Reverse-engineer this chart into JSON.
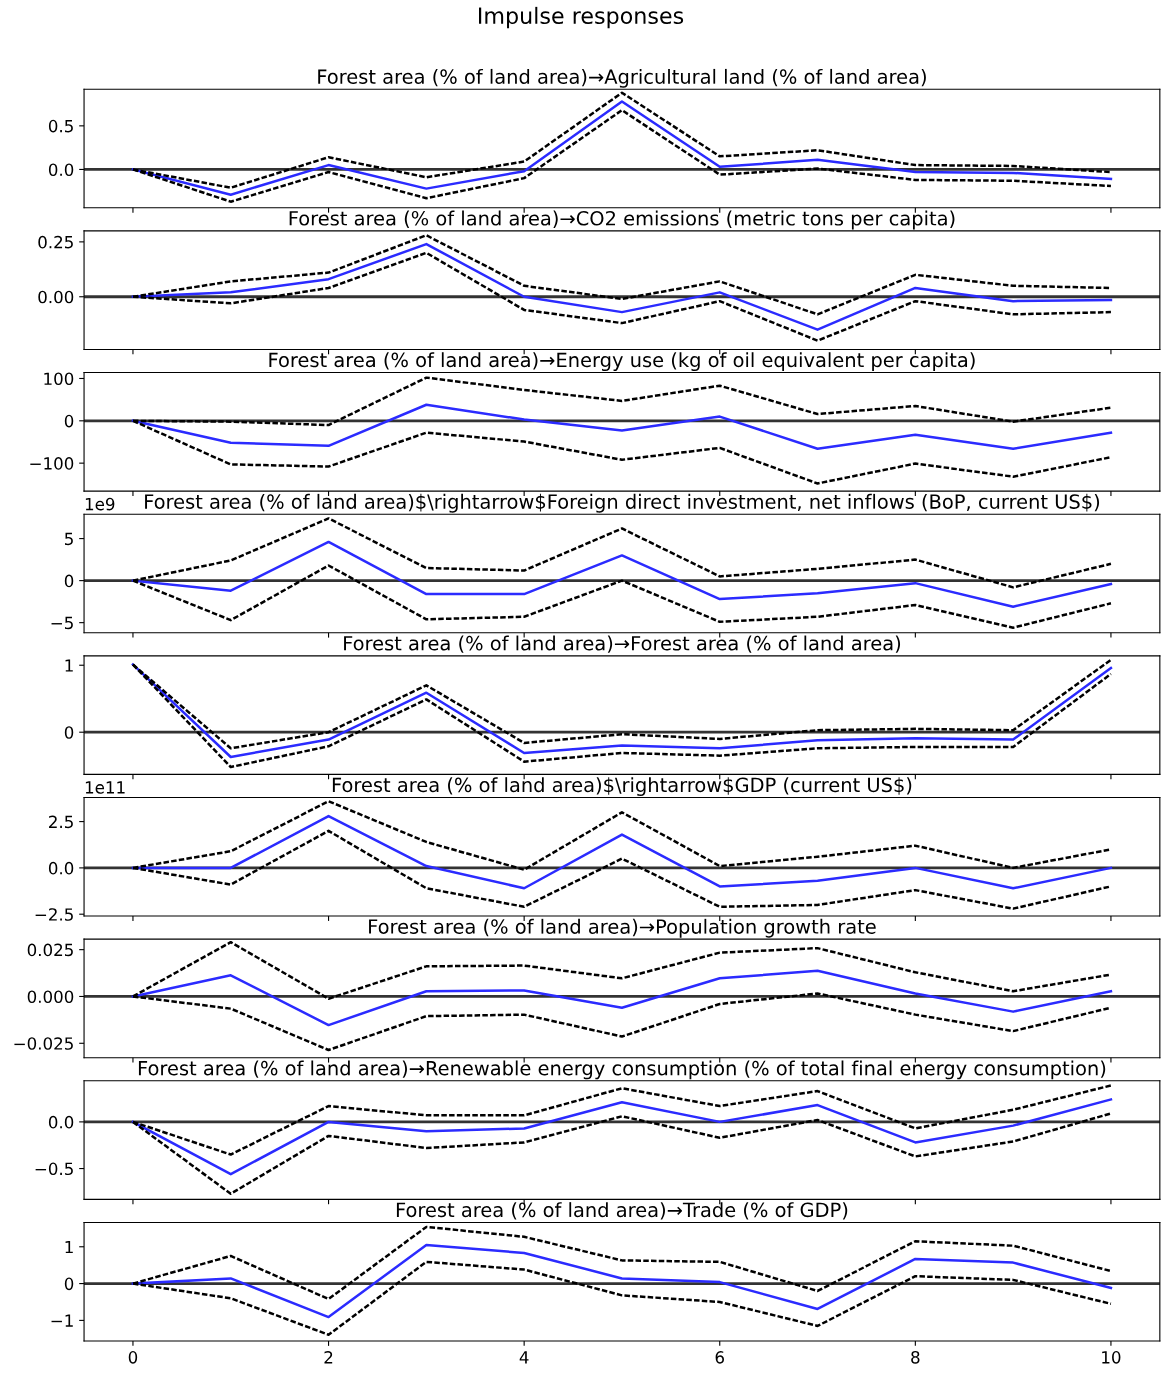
{
  "chart_data": [
    {
      "type": "line",
      "title": "Impulse responses",
      "subtitle": "Forest area (% of land area)→Agricultural land (% of land area)",
      "x": [
        0,
        1,
        2,
        3,
        4,
        5,
        6,
        7,
        8,
        9,
        10
      ],
      "xlim": [
        -0.5,
        10.5
      ],
      "xticks": [
        0,
        2,
        4,
        6,
        8,
        10
      ],
      "tick_labels": "y",
      "ylim": [
        -0.44,
        0.92
      ],
      "yticks": [
        {
          "value": 0,
          "label": "0.0"
        },
        {
          "value": 0.5,
          "label": "0.5"
        }
      ],
      "ref_lines": [
        {
          "axis": "y",
          "value": 0,
          "color": "#333333"
        }
      ],
      "series": [
        {
          "color": "#2b2bff",
          "line_style": "solid",
          "values": [
            0,
            -0.29,
            0.05,
            -0.22,
            -0.02,
            0.78,
            0.03,
            0.11,
            -0.03,
            -0.04,
            -0.11
          ]
        },
        {
          "color": "#000000",
          "line_style": "dashed",
          "values": [
            0,
            -0.21,
            0.14,
            -0.09,
            0.09,
            0.88,
            0.15,
            0.22,
            0.05,
            0.04,
            -0.03
          ]
        },
        {
          "color": "#000000",
          "line_style": "dashed",
          "values": [
            0,
            -0.37,
            -0.03,
            -0.33,
            -0.1,
            0.68,
            -0.06,
            0.01,
            -0.12,
            -0.13,
            -0.19
          ]
        }
      ]
    },
    {
      "type": "line",
      "title": "Forest area (% of land area)→CO2 emissions (metric tons per capita)",
      "x": [
        0,
        1,
        2,
        3,
        4,
        5,
        6,
        7,
        8,
        9,
        10
      ],
      "xlim": [
        -0.5,
        10.5
      ],
      "xticks": [
        0,
        2,
        4,
        6,
        8,
        10
      ],
      "tick_labels": "y",
      "ylim": [
        -0.24,
        0.3
      ],
      "yticks": [
        {
          "value": 0,
          "label": "0.00"
        },
        {
          "value": 0.25,
          "label": "0.25"
        }
      ],
      "ref_lines": [
        {
          "axis": "y",
          "value": 0,
          "color": "#333333"
        }
      ],
      "series": [
        {
          "color": "#2b2bff",
          "line_style": "solid",
          "values": [
            0,
            0.02,
            0.08,
            0.24,
            0.0,
            -0.07,
            0.02,
            -0.15,
            0.04,
            -0.02,
            -0.015
          ]
        },
        {
          "color": "#000000",
          "line_style": "dashed",
          "values": [
            0,
            0.07,
            0.11,
            0.28,
            0.05,
            -0.01,
            0.07,
            -0.08,
            0.1,
            0.05,
            0.04
          ]
        },
        {
          "color": "#000000",
          "line_style": "dashed",
          "values": [
            0,
            -0.03,
            0.04,
            0.2,
            -0.06,
            -0.12,
            -0.02,
            -0.2,
            -0.02,
            -0.08,
            -0.07
          ]
        }
      ]
    },
    {
      "type": "line",
      "title": "Forest area (% of land area)→Energy use (kg of oil equivalent per capita)",
      "x": [
        0,
        1,
        2,
        3,
        4,
        5,
        6,
        7,
        8,
        9,
        10
      ],
      "xlim": [
        -0.5,
        10.5
      ],
      "xticks": [
        0,
        2,
        4,
        6,
        8,
        10
      ],
      "tick_labels": "y",
      "ylim": [
        -166,
        114
      ],
      "yticks": [
        {
          "value": -100,
          "label": "−100"
        },
        0,
        100
      ],
      "ref_lines": [
        {
          "axis": "y",
          "value": 0,
          "color": "#333333"
        }
      ],
      "series": [
        {
          "color": "#2b2bff",
          "line_style": "solid",
          "values": [
            0,
            -52,
            -59,
            38,
            3,
            -23,
            10,
            -66,
            -33,
            -66,
            -28
          ]
        },
        {
          "color": "#000000",
          "line_style": "dashed",
          "values": [
            0,
            -2,
            -10,
            102,
            73,
            47,
            83,
            16,
            35,
            -2,
            31
          ]
        },
        {
          "color": "#000000",
          "line_style": "dashed",
          "values": [
            0,
            -103,
            -108,
            -28,
            -49,
            -92,
            -64,
            -148,
            -101,
            -132,
            -86
          ]
        }
      ]
    },
    {
      "type": "line",
      "title": "Forest area (% of land area)$\\rightarrow$Foreign direct investment, net inflows (BoP, current US$)",
      "annotations": [
        "1e9"
      ],
      "x": [
        0,
        1,
        2,
        3,
        4,
        5,
        6,
        7,
        8,
        9,
        10
      ],
      "xlim": [
        -0.5,
        10.5
      ],
      "xticks": [
        0,
        2,
        4,
        6,
        8,
        10
      ],
      "tick_labels": "y",
      "ylim": [
        -6.2,
        7.9
      ],
      "yticks": [
        {
          "value": -5,
          "label": "−5"
        },
        0,
        5
      ],
      "ref_lines": [
        {
          "axis": "y",
          "value": 0,
          "color": "#333333"
        }
      ],
      "series": [
        {
          "color": "#2b2bff",
          "line_style": "solid",
          "values": [
            0,
            -1.2,
            4.6,
            -1.6,
            -1.6,
            3.0,
            -2.2,
            -1.5,
            -0.3,
            -3.1,
            -0.4
          ]
        },
        {
          "color": "#000000",
          "line_style": "dashed",
          "values": [
            0,
            2.4,
            7.4,
            1.5,
            1.2,
            6.2,
            0.5,
            1.4,
            2.5,
            -0.8,
            2.0
          ]
        },
        {
          "color": "#000000",
          "line_style": "dashed",
          "values": [
            0,
            -4.7,
            1.8,
            -4.6,
            -4.3,
            0,
            -4.9,
            -4.3,
            -2.9,
            -5.6,
            -2.7
          ]
        }
      ]
    },
    {
      "type": "line",
      "title": "Forest area (% of land area)→Forest area (% of land area)",
      "x": [
        0,
        1,
        2,
        3,
        4,
        5,
        6,
        7,
        8,
        9,
        10
      ],
      "xlim": [
        -0.5,
        10.5
      ],
      "xticks": [
        0,
        2,
        4,
        6,
        8,
        10
      ],
      "tick_labels": "y",
      "ylim": [
        -0.63,
        1.14
      ],
      "yticks": [
        0,
        1
      ],
      "ref_lines": [
        {
          "axis": "y",
          "value": 0,
          "color": "#333333"
        }
      ],
      "series": [
        {
          "color": "#2b2bff",
          "line_style": "solid",
          "values": [
            1.01,
            -0.37,
            -0.11,
            0.59,
            -0.31,
            -0.2,
            -0.24,
            -0.12,
            -0.09,
            -0.11,
            0.96
          ]
        },
        {
          "color": "#000000",
          "line_style": "dashed",
          "values": [
            1.01,
            -0.24,
            0,
            0.7,
            -0.16,
            -0.03,
            -0.1,
            0.03,
            0.05,
            0.03,
            1.08
          ]
        },
        {
          "color": "#000000",
          "line_style": "dashed",
          "values": [
            1.01,
            -0.52,
            -0.21,
            0.49,
            -0.44,
            -0.31,
            -0.35,
            -0.24,
            -0.22,
            -0.22,
            0.87
          ]
        }
      ]
    },
    {
      "type": "line",
      "title": "Forest area (% of land area)$\\rightarrow$GDP (current US$)",
      "annotations": [
        "1e11"
      ],
      "x": [
        0,
        1,
        2,
        3,
        4,
        5,
        6,
        7,
        8,
        9,
        10
      ],
      "xlim": [
        -0.5,
        10.5
      ],
      "xticks": [
        0,
        2,
        4,
        6,
        8,
        10
      ],
      "tick_labels": "y",
      "ylim": [
        -2.6,
        3.8
      ],
      "yticks": [
        {
          "value": -2.5,
          "label": "−2.5"
        },
        {
          "value": 0,
          "label": "0.0"
        },
        2.5
      ],
      "ref_lines": [
        {
          "axis": "y",
          "value": 0,
          "color": "#333333"
        }
      ],
      "series": [
        {
          "color": "#2b2bff",
          "line_style": "solid",
          "values": [
            0,
            0,
            2.8,
            0.1,
            -1.1,
            1.8,
            -1.0,
            -0.7,
            0,
            -1.1,
            0
          ]
        },
        {
          "color": "#000000",
          "line_style": "dashed",
          "values": [
            0,
            0.9,
            3.6,
            1.4,
            -0.1,
            3.0,
            0.1,
            0.6,
            1.2,
            0,
            1.0
          ]
        },
        {
          "color": "#000000",
          "line_style": "dashed",
          "values": [
            0,
            -0.9,
            2.0,
            -1.1,
            -2.1,
            0.5,
            -2.1,
            -2.0,
            -1.2,
            -2.2,
            -1.0
          ]
        }
      ]
    },
    {
      "type": "line",
      "title": "Forest area (% of land area)→Population growth rate",
      "x": [
        0,
        1,
        2,
        3,
        4,
        5,
        6,
        7,
        8,
        9,
        10
      ],
      "xlim": [
        -0.5,
        10.5
      ],
      "xticks": [
        0,
        2,
        4,
        6,
        8,
        10
      ],
      "tick_labels": "y",
      "ylim": [
        -0.0327,
        0.0306
      ],
      "yticks": [
        {
          "value": -0.025,
          "label": "−0.025"
        },
        {
          "value": 0,
          "label": "0.000"
        },
        {
          "value": 0.025,
          "label": "0.025"
        }
      ],
      "ref_lines": [
        {
          "axis": "y",
          "value": 0,
          "color": "#333333"
        }
      ],
      "series": [
        {
          "color": "#2b2bff",
          "line_style": "solid",
          "values": [
            0,
            0.0113,
            -0.0153,
            0.0028,
            0.0032,
            -0.006,
            0.0097,
            0.0137,
            0.0016,
            -0.0081,
            0.0028
          ]
        },
        {
          "color": "#000000",
          "line_style": "dashed",
          "values": [
            0,
            0.029,
            -0.0012,
            0.0161,
            0.0165,
            0.0097,
            0.0234,
            0.0258,
            0.0129,
            0.0028,
            0.0117
          ]
        },
        {
          "color": "#000000",
          "line_style": "dashed",
          "values": [
            0,
            -0.0065,
            -0.0286,
            -0.0105,
            -0.0097,
            -0.0214,
            -0.004,
            0.0016,
            -0.0097,
            -0.0185,
            -0.006
          ]
        }
      ]
    },
    {
      "type": "line",
      "title": "Forest area (% of land area)→Renewable energy consumption (% of total final energy consumption)",
      "x": [
        0,
        1,
        2,
        3,
        4,
        5,
        6,
        7,
        8,
        9,
        10
      ],
      "xlim": [
        -0.5,
        10.5
      ],
      "xticks": [
        0,
        2,
        4,
        6,
        8,
        10
      ],
      "tick_labels": "y",
      "ylim": [
        -0.83,
        0.44
      ],
      "yticks": [
        {
          "value": -0.5,
          "label": "−0.5"
        },
        {
          "value": 0,
          "label": "0.0"
        }
      ],
      "ref_lines": [
        {
          "axis": "y",
          "value": 0,
          "color": "#333333"
        }
      ],
      "series": [
        {
          "color": "#2b2bff",
          "line_style": "solid",
          "values": [
            0,
            -0.56,
            0,
            -0.1,
            -0.07,
            0.21,
            0,
            0.18,
            -0.22,
            -0.04,
            0.24
          ]
        },
        {
          "color": "#000000",
          "line_style": "dashed",
          "values": [
            0,
            -0.35,
            0.17,
            0.07,
            0.07,
            0.36,
            0.17,
            0.33,
            -0.07,
            0.13,
            0.39
          ]
        },
        {
          "color": "#000000",
          "line_style": "dashed",
          "values": [
            0,
            -0.77,
            -0.15,
            -0.28,
            -0.22,
            0.06,
            -0.17,
            0.02,
            -0.37,
            -0.21,
            0.09
          ]
        }
      ]
    },
    {
      "type": "line",
      "title": "Forest area (% of land area)→Trade (% of GDP)",
      "x": [
        0,
        1,
        2,
        3,
        4,
        5,
        6,
        7,
        8,
        9,
        10
      ],
      "xlim": [
        -0.5,
        10.5
      ],
      "xticks": [
        0,
        2,
        4,
        6,
        8,
        10
      ],
      "ylim": [
        -1.56,
        1.66
      ],
      "yticks": [
        {
          "value": -1,
          "label": "−1"
        },
        0,
        1
      ],
      "ref_lines": [
        {
          "axis": "y",
          "value": 0,
          "color": "#333333"
        }
      ],
      "series": [
        {
          "color": "#2b2bff",
          "line_style": "solid",
          "values": [
            0,
            0.14,
            -0.91,
            1.05,
            0.83,
            0.14,
            0.04,
            -0.69,
            0.67,
            0.57,
            -0.12
          ]
        },
        {
          "color": "#000000",
          "line_style": "dashed",
          "values": [
            0,
            0.75,
            -0.42,
            1.54,
            1.27,
            0.63,
            0.59,
            -0.2,
            1.15,
            1.03,
            0.34
          ]
        },
        {
          "color": "#000000",
          "line_style": "dashed",
          "values": [
            0,
            -0.4,
            -1.39,
            0.59,
            0.38,
            -0.32,
            -0.5,
            -1.15,
            0.2,
            0.1,
            -0.55
          ]
        }
      ]
    }
  ]
}
